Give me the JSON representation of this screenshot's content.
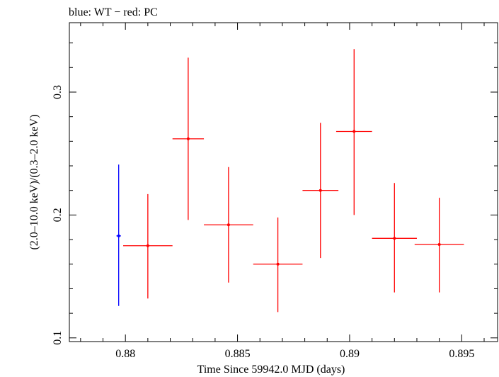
{
  "chart_data": {
    "type": "scatter",
    "title": "blue: WT − red: PC",
    "xlabel": "Time Since 59942.0 MJD (days)",
    "ylabel": "(2.0–10.0 keV)/(0.3–2.0 keV)",
    "xlim": [
      0.8775,
      0.8966
    ],
    "ylim": [
      0.097,
      0.3565
    ],
    "x_ticks": [
      {
        "value": 0.88,
        "label": "0.88"
      },
      {
        "value": 0.885,
        "label": "0.885"
      },
      {
        "value": 0.89,
        "label": "0.89"
      },
      {
        "value": 0.895,
        "label": "0.895"
      }
    ],
    "y_ticks": [
      {
        "value": 0.1,
        "label": "0.1"
      },
      {
        "value": 0.2,
        "label": "0.2"
      },
      {
        "value": 0.3,
        "label": "0.3"
      }
    ],
    "grid": false,
    "series": [
      {
        "name": "WT",
        "color": "#0000ff",
        "points": [
          {
            "x": 0.8797,
            "xerr_lo": 0.0001,
            "xerr_hi": 0.0001,
            "y": 0.183,
            "ylo": 0.126,
            "yhi": 0.241
          }
        ]
      },
      {
        "name": "PC",
        "color": "#ff0000",
        "points": [
          {
            "x": 0.881,
            "xerr_lo": 0.0011,
            "xerr_hi": 0.0011,
            "y": 0.175,
            "ylo": 0.132,
            "yhi": 0.217
          },
          {
            "x": 0.8828,
            "xerr_lo": 0.0007,
            "xerr_hi": 0.0007,
            "y": 0.262,
            "ylo": 0.196,
            "yhi": 0.328
          },
          {
            "x": 0.8846,
            "xerr_lo": 0.0011,
            "xerr_hi": 0.0011,
            "y": 0.192,
            "ylo": 0.145,
            "yhi": 0.239
          },
          {
            "x": 0.8868,
            "xerr_lo": 0.0011,
            "xerr_hi": 0.0011,
            "y": 0.16,
            "ylo": 0.121,
            "yhi": 0.198
          },
          {
            "x": 0.8887,
            "xerr_lo": 0.0008,
            "xerr_hi": 0.0008,
            "y": 0.22,
            "ylo": 0.165,
            "yhi": 0.275
          },
          {
            "x": 0.8902,
            "xerr_lo": 0.0008,
            "xerr_hi": 0.0008,
            "y": 0.268,
            "ylo": 0.2,
            "yhi": 0.335
          },
          {
            "x": 0.892,
            "xerr_lo": 0.001,
            "xerr_hi": 0.001,
            "y": 0.181,
            "ylo": 0.137,
            "yhi": 0.226
          },
          {
            "x": 0.894,
            "xerr_lo": 0.0011,
            "xerr_hi": 0.0011,
            "y": 0.176,
            "ylo": 0.137,
            "yhi": 0.214
          }
        ]
      }
    ]
  }
}
